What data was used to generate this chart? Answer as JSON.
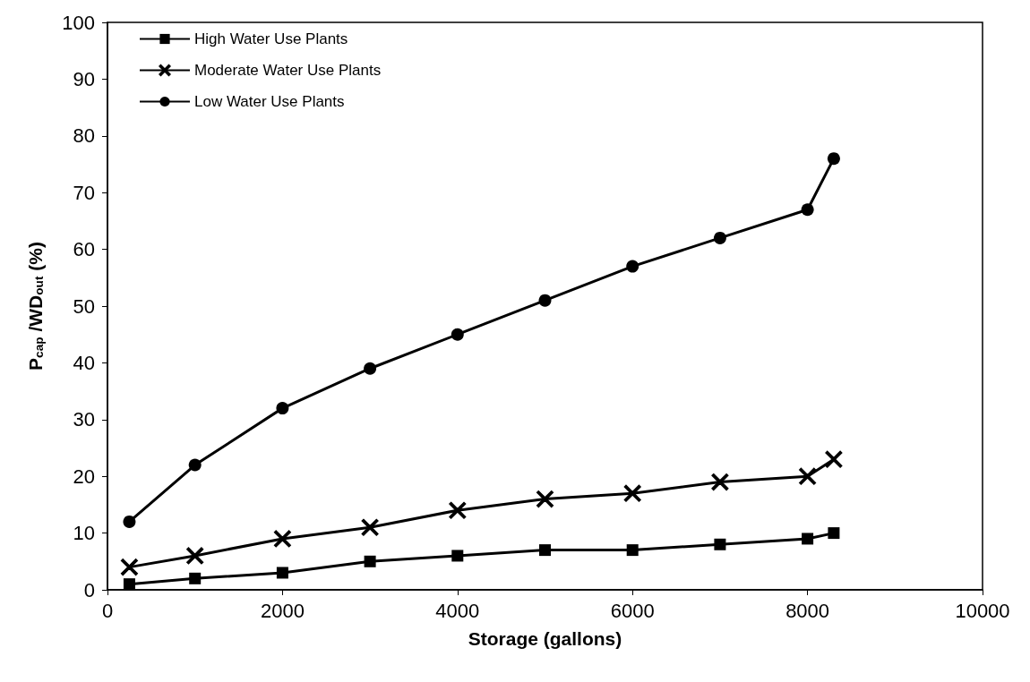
{
  "chart_data": {
    "type": "line",
    "xlabel": "Storage (gallons)",
    "ylabel": "P$_{cap}$ /WD$_{out}$ (%)",
    "xlim": [
      0,
      10000
    ],
    "xticks": [
      0,
      2000,
      4000,
      6000,
      8000,
      10000
    ],
    "ylim": [
      0,
      100
    ],
    "yticks": [
      0,
      10,
      20,
      30,
      40,
      50,
      60,
      70,
      80,
      90,
      100
    ],
    "x": [
      250,
      1000,
      2000,
      3000,
      4000,
      5000,
      6000,
      7000,
      8000,
      8300
    ],
    "grid": false,
    "legend": "top left",
    "line_style": "solid",
    "series": [
      {
        "name": "High Water Use Plants",
        "color": "#000000",
        "marker": "square",
        "values": [
          1,
          2,
          3,
          5,
          6,
          7,
          7,
          8,
          9,
          10
        ]
      },
      {
        "name": "Moderate Water Use Plants",
        "color": "#000000",
        "marker": "cross",
        "values": [
          4,
          6,
          9,
          11,
          14,
          16,
          17,
          19,
          20,
          23
        ]
      },
      {
        "name": "Low Water Use Plants",
        "color": "#000000",
        "marker": "circle",
        "values": [
          12,
          22,
          32,
          39,
          45,
          51,
          57,
          62,
          67,
          76
        ]
      }
    ]
  }
}
